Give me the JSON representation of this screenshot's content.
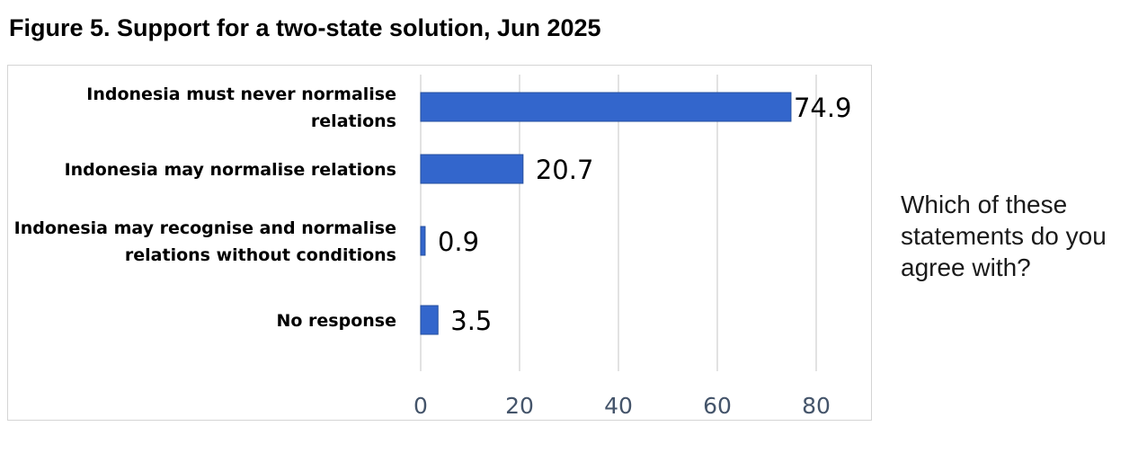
{
  "title": "Figure 5. Support for a two-state solution, Jun 2025",
  "side_question": "Which of these statements do you agree with?",
  "colors": {
    "bar": "#3366cc",
    "bar_edge": "#254f9e",
    "grid": "#d9d9d9",
    "tick_text": "#44546a"
  },
  "chart_data": {
    "type": "bar",
    "orientation": "horizontal",
    "title": "Figure 5. Support for a two-state solution, Jun 2025",
    "categories": [
      [
        "Indonesia must never normalise",
        "relations"
      ],
      [
        "Indonesia may normalise relations"
      ],
      [
        "Indonesia may recognise and normalise",
        "relations without  conditions"
      ],
      [
        "No response"
      ]
    ],
    "values": [
      74.9,
      20.7,
      0.9,
      3.5
    ],
    "data_labels": [
      "74.9",
      "20.7",
      "0.9",
      "3.5"
    ],
    "xlim": [
      0,
      80
    ],
    "xticks": [
      0,
      20,
      40,
      60,
      80
    ],
    "grid": "vertical",
    "legend": "none",
    "xlabel": "",
    "ylabel": ""
  }
}
